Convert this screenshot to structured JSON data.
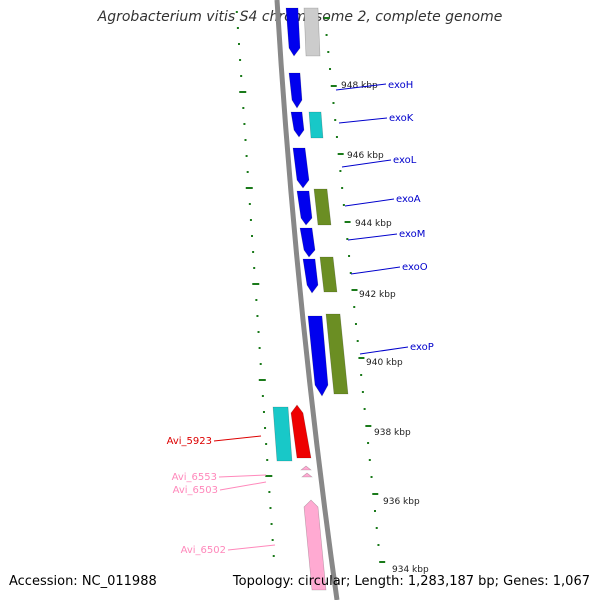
{
  "title": "Agrobacterium vitis S4 chromosome 2, complete genome",
  "footer": {
    "accession": "Accession: NC_011988",
    "summary": "Topology: circular; Length: 1,283,187 bp; Genes: 1,067"
  },
  "colors": {
    "backbone": "#888888",
    "ticks": "#1a7a1a",
    "blue": "#0000ee",
    "cyan": "#18c8c8",
    "olive": "#6b8e23",
    "red": "#ee0000",
    "pink": "#ffaad2",
    "gray": "#cccccc",
    "label_blue": "#0000cc",
    "label_red": "#dd0000",
    "label_pink": "#ff88bb"
  },
  "scale_labels": [
    "948 kbp",
    "946 kbp",
    "944 kbp",
    "942 kbp",
    "940 kbp",
    "938 kbp",
    "936 kbp",
    "934 kbp"
  ],
  "gene_labels": [
    "exoH",
    "exoK",
    "exoL",
    "exoA",
    "exoM",
    "exoO",
    "exoP",
    "Avi_5923",
    "Avi_6553",
    "Avi_6503",
    "Avi_6502"
  ]
}
